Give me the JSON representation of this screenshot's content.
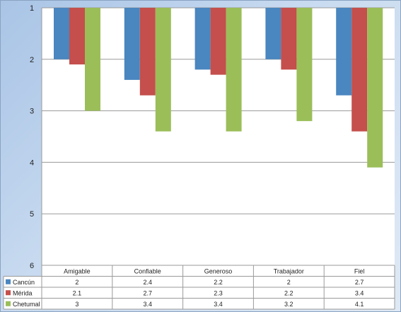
{
  "chart_data": {
    "type": "bar",
    "categories": [
      "Amigable",
      "Confiable",
      "Generoso",
      "Trabajador",
      "Fiel"
    ],
    "series": [
      {
        "name": "Cancún",
        "color": "#4a86c0",
        "values": [
          2,
          2.4,
          2.2,
          2,
          2.7
        ]
      },
      {
        "name": "Mérida",
        "color": "#c44f4c",
        "values": [
          2.1,
          2.7,
          2.3,
          2.2,
          3.4
        ]
      },
      {
        "name": "Chetumal",
        "color": "#9bbe59",
        "values": [
          3,
          3.4,
          3.4,
          3.2,
          4.1
        ]
      }
    ],
    "series_labels": [
      "2",
      "2.1",
      "3",
      "2.4",
      "2.7",
      "3.4",
      "2.2",
      "2.3",
      "3.4",
      "2",
      "2.2",
      "3.2",
      "2.7",
      "3.4",
      "4.1"
    ],
    "yticks": [
      "1",
      "2",
      "3",
      "4",
      "5",
      "6"
    ],
    "ylim": [
      1,
      6
    ],
    "y_reversed": true,
    "grid": true,
    "legend": "data-table-left",
    "title": "",
    "xlabel": "",
    "ylabel": ""
  }
}
